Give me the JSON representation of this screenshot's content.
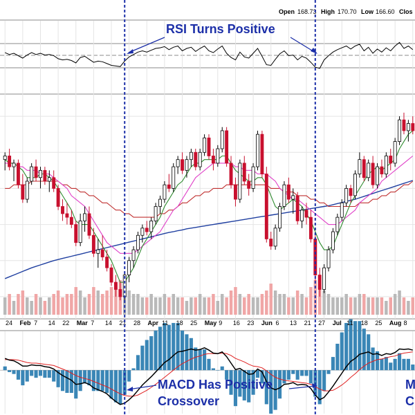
{
  "header": {
    "open_label": "Open",
    "open_value": "168.73",
    "high_label": "High",
    "high_value": "170.70",
    "low_label": "Low",
    "low_value": "166.60",
    "close_label": "Clos"
  },
  "annotations": {
    "rsi": "RSI Turns Positive",
    "macd_line1": "MACD Has Positive",
    "macd_line2": "Crossover",
    "cut_line1": "M",
    "cut_line2": "C"
  },
  "colors": {
    "up": "#000000",
    "down": "#c8102e",
    "ma_short": "#2e8b2e",
    "ma_mid": "#e040c8",
    "ma_long": "#c03030",
    "ma_200": "#1f3fa0",
    "vol_up": "#b9b9b9",
    "vol_down": "#f0a6a6",
    "histogram": "#3a86b6",
    "macd": "#000000",
    "signal": "#e02020",
    "annotation": "#1c2fa8",
    "marker_line": "#1c2fa8"
  },
  "chart_data": {
    "type": "candlestick",
    "x_labels": [
      "24",
      "Feb",
      "7",
      "14",
      "22",
      "Mar",
      "7",
      "14",
      "21",
      "28",
      "Apr",
      "11",
      "18",
      "25",
      "May",
      "9",
      "16",
      "23",
      "Jun",
      "6",
      "13",
      "21",
      "27",
      "Jul",
      "11",
      "18",
      "25",
      "Aug",
      "8"
    ],
    "candles": [
      {
        "o": 158,
        "h": 160,
        "l": 155,
        "c": 159
      },
      {
        "o": 159,
        "h": 161,
        "l": 155,
        "c": 156
      },
      {
        "o": 156,
        "h": 158,
        "l": 152,
        "c": 157
      },
      {
        "o": 157,
        "h": 158,
        "l": 150,
        "c": 151
      },
      {
        "o": 151,
        "h": 154,
        "l": 146,
        "c": 147
      },
      {
        "o": 147,
        "h": 153,
        "l": 146,
        "c": 152
      },
      {
        "o": 152,
        "h": 157,
        "l": 151,
        "c": 156
      },
      {
        "o": 156,
        "h": 158,
        "l": 152,
        "c": 153
      },
      {
        "o": 153,
        "h": 156,
        "l": 150,
        "c": 155
      },
      {
        "o": 155,
        "h": 156,
        "l": 151,
        "c": 152
      },
      {
        "o": 152,
        "h": 155,
        "l": 149,
        "c": 153
      },
      {
        "o": 153,
        "h": 155,
        "l": 149,
        "c": 150
      },
      {
        "o": 150,
        "h": 151,
        "l": 144,
        "c": 145
      },
      {
        "o": 145,
        "h": 147,
        "l": 141,
        "c": 143
      },
      {
        "o": 143,
        "h": 146,
        "l": 140,
        "c": 142
      },
      {
        "o": 142,
        "h": 144,
        "l": 139,
        "c": 140
      },
      {
        "o": 140,
        "h": 141,
        "l": 134,
        "c": 135
      },
      {
        "o": 135,
        "h": 143,
        "l": 134,
        "c": 141
      },
      {
        "o": 141,
        "h": 145,
        "l": 138,
        "c": 143
      },
      {
        "o": 143,
        "h": 145,
        "l": 136,
        "c": 137
      },
      {
        "o": 137,
        "h": 139,
        "l": 131,
        "c": 132
      },
      {
        "o": 132,
        "h": 136,
        "l": 128,
        "c": 133
      },
      {
        "o": 133,
        "h": 137,
        "l": 130,
        "c": 131
      },
      {
        "o": 131,
        "h": 133,
        "l": 127,
        "c": 128
      },
      {
        "o": 128,
        "h": 129,
        "l": 123,
        "c": 124
      },
      {
        "o": 124,
        "h": 126,
        "l": 120,
        "c": 122
      },
      {
        "o": 122,
        "h": 124,
        "l": 119,
        "c": 120
      },
      {
        "o": 120,
        "h": 127,
        "l": 119,
        "c": 126
      },
      {
        "o": 126,
        "h": 131,
        "l": 124,
        "c": 130
      },
      {
        "o": 130,
        "h": 134,
        "l": 128,
        "c": 133
      },
      {
        "o": 133,
        "h": 138,
        "l": 132,
        "c": 137
      },
      {
        "o": 137,
        "h": 140,
        "l": 135,
        "c": 139
      },
      {
        "o": 139,
        "h": 141,
        "l": 137,
        "c": 138
      },
      {
        "o": 138,
        "h": 142,
        "l": 136,
        "c": 141
      },
      {
        "o": 141,
        "h": 146,
        "l": 140,
        "c": 145
      },
      {
        "o": 145,
        "h": 148,
        "l": 143,
        "c": 147
      },
      {
        "o": 147,
        "h": 152,
        "l": 146,
        "c": 151
      },
      {
        "o": 151,
        "h": 154,
        "l": 149,
        "c": 150
      },
      {
        "o": 150,
        "h": 157,
        "l": 149,
        "c": 156
      },
      {
        "o": 156,
        "h": 159,
        "l": 154,
        "c": 158
      },
      {
        "o": 158,
        "h": 160,
        "l": 154,
        "c": 155
      },
      {
        "o": 155,
        "h": 159,
        "l": 153,
        "c": 158
      },
      {
        "o": 158,
        "h": 161,
        "l": 156,
        "c": 160
      },
      {
        "o": 160,
        "h": 161,
        "l": 155,
        "c": 156
      },
      {
        "o": 156,
        "h": 161,
        "l": 155,
        "c": 160
      },
      {
        "o": 160,
        "h": 165,
        "l": 159,
        "c": 164
      },
      {
        "o": 164,
        "h": 165,
        "l": 158,
        "c": 159
      },
      {
        "o": 159,
        "h": 161,
        "l": 155,
        "c": 157
      },
      {
        "o": 157,
        "h": 162,
        "l": 156,
        "c": 161
      },
      {
        "o": 161,
        "h": 167,
        "l": 160,
        "c": 166
      },
      {
        "o": 166,
        "h": 167,
        "l": 156,
        "c": 157
      },
      {
        "o": 157,
        "h": 159,
        "l": 150,
        "c": 151
      },
      {
        "o": 151,
        "h": 153,
        "l": 145,
        "c": 147
      },
      {
        "o": 147,
        "h": 158,
        "l": 146,
        "c": 157
      },
      {
        "o": 157,
        "h": 159,
        "l": 151,
        "c": 152
      },
      {
        "o": 152,
        "h": 154,
        "l": 148,
        "c": 150
      },
      {
        "o": 150,
        "h": 157,
        "l": 149,
        "c": 156
      },
      {
        "o": 156,
        "h": 166,
        "l": 155,
        "c": 165
      },
      {
        "o": 165,
        "h": 166,
        "l": 153,
        "c": 154
      },
      {
        "o": 154,
        "h": 156,
        "l": 135,
        "c": 136
      },
      {
        "o": 136,
        "h": 138,
        "l": 133,
        "c": 134
      },
      {
        "o": 134,
        "h": 140,
        "l": 133,
        "c": 139
      },
      {
        "o": 139,
        "h": 146,
        "l": 138,
        "c": 145
      },
      {
        "o": 145,
        "h": 152,
        "l": 144,
        "c": 151
      },
      {
        "o": 151,
        "h": 153,
        "l": 146,
        "c": 147
      },
      {
        "o": 147,
        "h": 150,
        "l": 143,
        "c": 148
      },
      {
        "o": 148,
        "h": 149,
        "l": 140,
        "c": 141
      },
      {
        "o": 141,
        "h": 145,
        "l": 139,
        "c": 144
      },
      {
        "o": 144,
        "h": 146,
        "l": 140,
        "c": 142
      },
      {
        "o": 142,
        "h": 144,
        "l": 135,
        "c": 136
      },
      {
        "o": 136,
        "h": 137,
        "l": 124,
        "c": 126
      },
      {
        "o": 126,
        "h": 128,
        "l": 120,
        "c": 122
      },
      {
        "o": 122,
        "h": 129,
        "l": 121,
        "c": 128
      },
      {
        "o": 128,
        "h": 134,
        "l": 127,
        "c": 133
      },
      {
        "o": 133,
        "h": 139,
        "l": 132,
        "c": 138
      },
      {
        "o": 138,
        "h": 143,
        "l": 137,
        "c": 142
      },
      {
        "o": 142,
        "h": 147,
        "l": 141,
        "c": 146
      },
      {
        "o": 146,
        "h": 151,
        "l": 145,
        "c": 150
      },
      {
        "o": 150,
        "h": 151,
        "l": 146,
        "c": 148
      },
      {
        "o": 148,
        "h": 155,
        "l": 147,
        "c": 154
      },
      {
        "o": 154,
        "h": 160,
        "l": 153,
        "c": 158
      },
      {
        "o": 158,
        "h": 159,
        "l": 152,
        "c": 153
      },
      {
        "o": 153,
        "h": 158,
        "l": 152,
        "c": 157
      },
      {
        "o": 157,
        "h": 159,
        "l": 150,
        "c": 151
      },
      {
        "o": 151,
        "h": 157,
        "l": 150,
        "c": 156
      },
      {
        "o": 156,
        "h": 158,
        "l": 153,
        "c": 154
      },
      {
        "o": 154,
        "h": 160,
        "l": 153,
        "c": 159
      },
      {
        "o": 159,
        "h": 161,
        "l": 155,
        "c": 157
      },
      {
        "o": 157,
        "h": 164,
        "l": 156,
        "c": 163
      },
      {
        "o": 163,
        "h": 170,
        "l": 162,
        "c": 169
      },
      {
        "o": 169,
        "h": 171,
        "l": 165,
        "c": 166
      },
      {
        "o": 166,
        "h": 169,
        "l": 163,
        "c": 168
      },
      {
        "o": 168,
        "h": 170,
        "l": 165,
        "c": 166
      }
    ],
    "ma_short": [
      158,
      157,
      157,
      156,
      155,
      153,
      153,
      153,
      154,
      154,
      153,
      152,
      150,
      148,
      146,
      144,
      141,
      140,
      140,
      140,
      138,
      136,
      134,
      132,
      130,
      127,
      124,
      124,
      126,
      128,
      131,
      134,
      136,
      138,
      140,
      142,
      145,
      147,
      149,
      151,
      152,
      154,
      156,
      157,
      157,
      158,
      158,
      158,
      158,
      159,
      159,
      157,
      155,
      154,
      153,
      152,
      152,
      153,
      153,
      151,
      148,
      145,
      144,
      145,
      146,
      147,
      146,
      145,
      143,
      141,
      138,
      135,
      133,
      133,
      134,
      137,
      140,
      143,
      146,
      148,
      150,
      152,
      154,
      155,
      156,
      155,
      156,
      157,
      158,
      161,
      163,
      165,
      166
    ],
    "ma_mid": [
      157,
      157,
      157,
      156,
      156,
      155,
      155,
      155,
      154,
      154,
      154,
      153,
      152,
      151,
      150,
      148,
      147,
      146,
      145,
      143,
      141,
      139,
      137,
      135,
      134,
      133,
      132,
      132,
      132,
      132,
      133,
      134,
      135,
      136,
      137,
      138,
      140,
      142,
      144,
      145,
      147,
      149,
      151,
      153,
      154,
      155,
      156,
      157,
      157,
      157,
      157,
      157,
      156,
      156,
      155,
      155,
      155,
      154,
      154,
      154,
      153,
      152,
      150,
      149,
      148,
      147,
      147,
      146,
      145,
      144,
      143,
      142,
      141,
      140,
      140,
      140,
      141,
      142,
      143,
      144,
      146,
      147,
      148,
      149,
      150,
      152,
      153,
      154,
      155,
      156,
      157,
      158,
      159
    ],
    "ma_long": [
      150,
      150,
      151,
      151,
      151,
      151,
      152,
      152,
      152,
      152,
      152,
      152,
      152,
      151,
      151,
      150,
      150,
      149,
      149,
      148,
      148,
      147,
      146,
      146,
      145,
      144,
      144,
      143,
      143,
      142,
      142,
      142,
      142,
      142,
      142,
      143,
      143,
      144,
      144,
      145,
      146,
      146,
      147,
      148,
      148,
      149,
      149,
      150,
      150,
      150,
      151,
      151,
      151,
      151,
      151,
      151,
      151,
      151,
      151,
      151,
      150,
      150,
      150,
      149,
      149,
      149,
      148,
      148,
      148,
      147,
      147,
      146,
      146,
      145,
      145,
      145,
      145,
      145,
      145,
      145,
      146,
      146,
      146,
      147,
      147,
      148,
      148,
      149,
      149,
      150,
      151,
      151,
      152
    ],
    "ma_200": [
      125,
      125.5,
      126,
      126.5,
      127,
      127.5,
      128,
      128.4,
      128.8,
      129.2,
      129.6,
      130,
      130.3,
      130.6,
      130.9,
      131.2,
      131.5,
      131.8,
      132.1,
      132.4,
      132.7,
      133,
      133.3,
      133.6,
      133.9,
      134.2,
      134.5,
      134.8,
      135.1,
      135.4,
      135.7,
      136,
      136.3,
      136.6,
      136.9,
      137.2,
      137.5,
      137.8,
      138,
      138.3,
      138.5,
      138.8,
      139,
      139.2,
      139.4,
      139.6,
      139.8,
      140,
      140.2,
      140.4,
      140.6,
      140.8,
      141,
      141.2,
      141.4,
      141.6,
      141.8,
      142,
      142.2,
      142.4,
      142.6,
      142.8,
      143,
      143.2,
      143.4,
      143.6,
      143.8,
      144,
      144.2,
      144.4,
      144.6,
      144.8,
      145,
      145.2,
      145.5,
      145.8,
      146.1,
      146.4,
      146.7,
      147,
      147.4,
      147.8,
      148.2,
      148.6,
      149,
      149.4,
      149.8,
      150.2,
      150.6,
      151,
      151.4,
      151.8,
      152.2
    ],
    "volume": [
      5,
      6,
      4,
      6,
      7,
      5,
      4,
      6,
      5,
      4,
      5,
      6,
      7,
      5,
      6,
      6,
      8,
      7,
      5,
      6,
      8,
      7,
      6,
      7,
      8,
      9,
      10,
      8,
      7,
      6,
      6,
      5,
      5,
      6,
      5,
      5,
      6,
      5,
      6,
      5,
      5,
      4,
      5,
      5,
      6,
      5,
      5,
      6,
      4,
      6,
      5,
      7,
      8,
      6,
      5,
      6,
      5,
      5,
      6,
      7,
      9,
      7,
      6,
      6,
      5,
      5,
      7,
      6,
      5,
      8,
      10,
      9,
      7,
      6,
      5,
      5,
      5,
      6,
      5,
      5,
      6,
      6,
      5,
      5,
      5,
      5,
      4,
      5,
      6,
      7,
      5,
      4,
      5
    ],
    "rsi": [
      55,
      52,
      54,
      50,
      46,
      51,
      55,
      52,
      54,
      51,
      52,
      50,
      45,
      43,
      44,
      42,
      38,
      47,
      49,
      44,
      39,
      41,
      40,
      37,
      34,
      33,
      32,
      41,
      48,
      52,
      56,
      58,
      56,
      59,
      62,
      63,
      65,
      60,
      64,
      66,
      58,
      62,
      64,
      57,
      62,
      66,
      58,
      55,
      61,
      66,
      54,
      47,
      43,
      56,
      48,
      46,
      54,
      62,
      49,
      35,
      34,
      44,
      53,
      58,
      50,
      51,
      43,
      49,
      46,
      39,
      31,
      29,
      43,
      50,
      56,
      60,
      63,
      66,
      61,
      66,
      69,
      58,
      64,
      54,
      61,
      56,
      63,
      58,
      66,
      72,
      62,
      66,
      60
    ],
    "macd": [
      2.0,
      1.7,
      1.6,
      1.2,
      0.7,
      0.7,
      0.9,
      0.8,
      0.8,
      0.6,
      0.5,
      0.2,
      -0.4,
      -0.9,
      -1.3,
      -1.7,
      -2.4,
      -2.3,
      -2.1,
      -2.4,
      -3.0,
      -3.3,
      -3.6,
      -4.0,
      -4.7,
      -5.3,
      -5.8,
      -5.6,
      -5.0,
      -4.3,
      -3.4,
      -2.5,
      -1.8,
      -1.1,
      -0.3,
      0.5,
      1.3,
      1.8,
      2.5,
      3.1,
      3.2,
      3.4,
      3.6,
      3.4,
      3.5,
      3.8,
      3.4,
      2.9,
      2.8,
      3.1,
      2.3,
      1.2,
      0.1,
      0.3,
      -0.2,
      -0.7,
      -0.6,
      0.2,
      -0.3,
      -1.9,
      -3.0,
      -3.3,
      -3.0,
      -2.4,
      -2.3,
      -2.1,
      -2.5,
      -2.4,
      -2.5,
      -3.1,
      -4.2,
      -5.0,
      -4.6,
      -3.7,
      -2.7,
      -1.6,
      -0.5,
      0.6,
      1.5,
      2.0,
      2.7,
      2.9,
      3.1,
      2.7,
      2.8,
      2.5,
      2.8,
      2.7,
      3.0,
      3.6,
      3.5,
      3.6,
      3.4
    ],
    "signal": [
      1.8,
      1.8,
      1.8,
      1.7,
      1.5,
      1.3,
      1.2,
      1.2,
      1.1,
      1.0,
      0.9,
      0.8,
      0.5,
      0.2,
      -0.1,
      -0.5,
      -0.9,
      -1.2,
      -1.4,
      -1.6,
      -1.9,
      -2.2,
      -2.5,
      -2.8,
      -3.2,
      -3.6,
      -4.0,
      -4.3,
      -4.4,
      -4.4,
      -4.2,
      -3.8,
      -3.4,
      -2.9,
      -2.4,
      -1.8,
      -1.2,
      -0.6,
      0.0,
      0.6,
      1.1,
      1.5,
      1.9,
      2.2,
      2.4,
      2.7,
      2.8,
      2.8,
      2.8,
      2.9,
      2.8,
      2.5,
      2.0,
      1.7,
      1.4,
      1.0,
      0.7,
      0.6,
      0.4,
      -0.1,
      -0.7,
      -1.2,
      -1.5,
      -1.7,
      -1.8,
      -1.9,
      -2.0,
      -2.1,
      -2.2,
      -2.4,
      -2.8,
      -3.2,
      -3.5,
      -3.5,
      -3.4,
      -3.0,
      -2.5,
      -1.9,
      -1.2,
      -0.6,
      0.1,
      0.7,
      1.2,
      1.5,
      1.8,
      1.9,
      2.1,
      2.3,
      2.4,
      2.7,
      2.9,
      3.0,
      3.1
    ],
    "price_range": [
      115,
      175
    ],
    "rsi_range": [
      0,
      100
    ],
    "macd_range": [
      -7,
      6
    ],
    "volume_range": [
      0,
      14
    ],
    "marker_indices": [
      27,
      70
    ]
  }
}
